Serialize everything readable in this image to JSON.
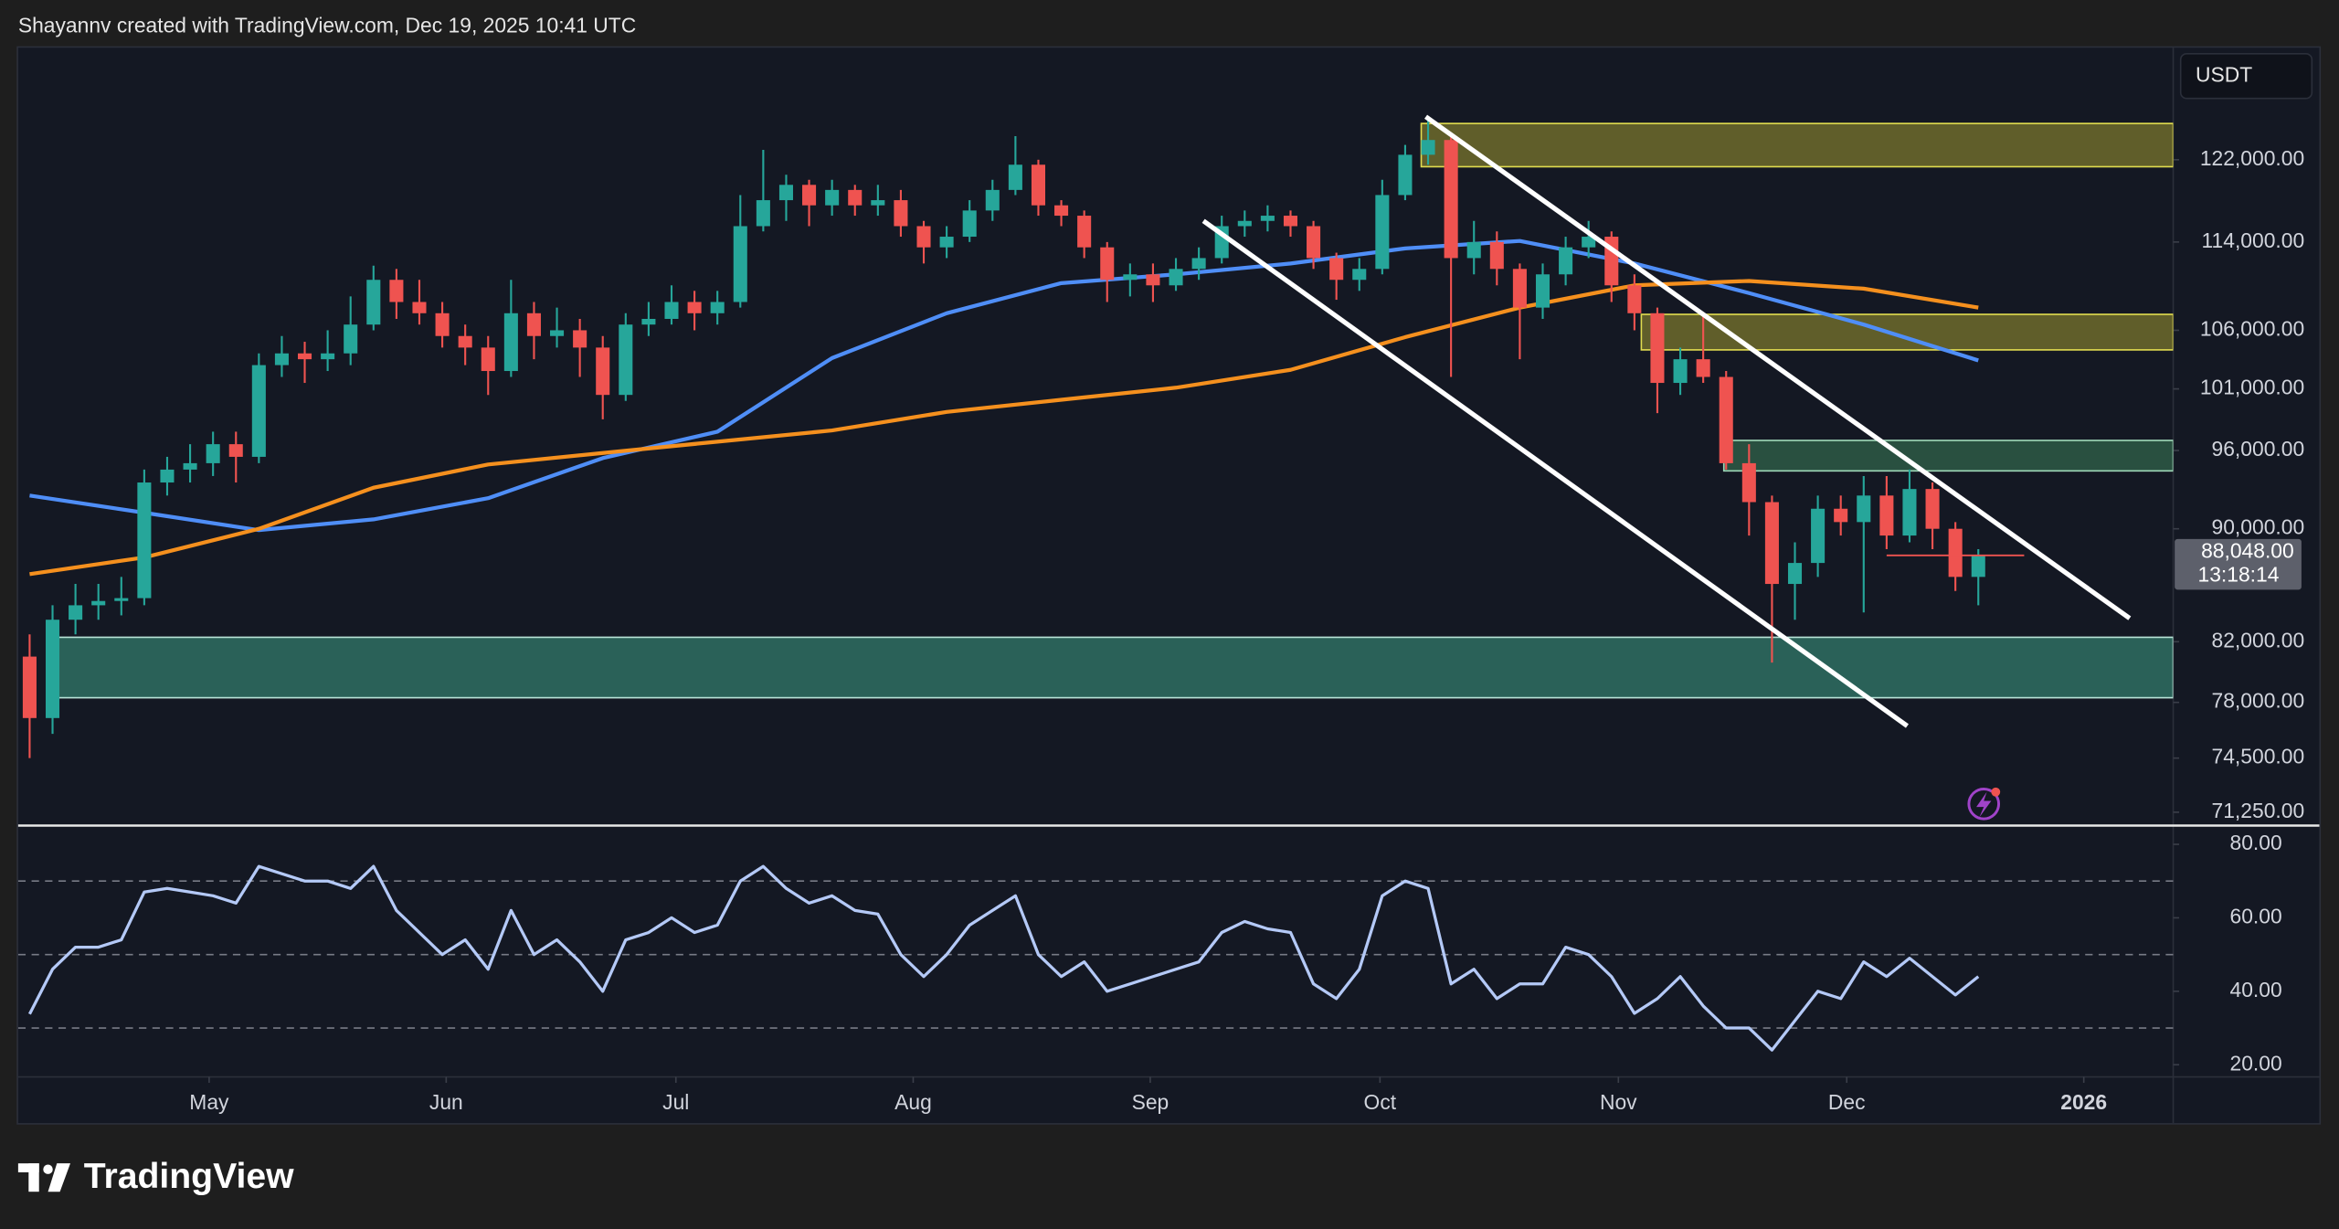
{
  "header": "Shayannv created with TradingView.com, Dec 19, 2025 10:41 UTC",
  "currency": "USDT",
  "brand": "TradingView",
  "chart_data": [
    {
      "type": "candlestick",
      "log_scale": true,
      "grid": false,
      "up_color": "#26a69a",
      "down_color": "#ef5350",
      "xlim": [
        -0.5,
        93.5
      ],
      "xticks": [
        {
          "value": 7.83,
          "label": "May"
        },
        {
          "value": 18.17,
          "label": "Jun"
        },
        {
          "value": 28.19,
          "label": "Jul"
        },
        {
          "value": 38.54,
          "label": "Aug"
        },
        {
          "value": 48.88,
          "label": "Sep"
        },
        {
          "value": 58.9,
          "label": "Oct"
        },
        {
          "value": 69.3,
          "label": "Nov"
        },
        {
          "value": 79.26,
          "label": "Dec"
        },
        {
          "value": 89.6,
          "label": "2026"
        }
      ],
      "ylim": [
        70600,
        133800
      ],
      "yticks": [
        {
          "value": 122000,
          "label": "122,000.00"
        },
        {
          "value": 114000,
          "label": "114,000.00"
        },
        {
          "value": 106000,
          "label": "106,000.00"
        },
        {
          "value": 101000,
          "label": "101,000.00"
        },
        {
          "value": 96000,
          "label": "96,000.00"
        },
        {
          "value": 90000,
          "label": "90,000.00"
        },
        {
          "value": 82000,
          "label": "82,000.00"
        },
        {
          "value": 78000,
          "label": "78,000.00"
        },
        {
          "value": 74500,
          "label": "74,500.00"
        },
        {
          "value": 71250,
          "label": "71,250.00"
        }
      ],
      "open": [
        81000,
        77000,
        83500,
        84500,
        84800,
        85000,
        93500,
        94500,
        95000,
        96500,
        95500,
        103000,
        104000,
        103500,
        104000,
        106500,
        110500,
        108500,
        107500,
        105500,
        104500,
        102500,
        107500,
        105500,
        106000,
        104500,
        100500,
        106500,
        107000,
        108500,
        107500,
        108500,
        115500,
        118000,
        119500,
        117500,
        119000,
        117500,
        118000,
        115500,
        113500,
        114500,
        117000,
        119000,
        121500,
        117500,
        116500,
        113500,
        110500,
        111000,
        110000,
        111500,
        112500,
        115500,
        116000,
        116500,
        115500,
        112500,
        110500,
        111500,
        118500,
        122500,
        124000,
        112500,
        114000,
        111500,
        108000,
        111000,
        113500,
        114500,
        110000,
        107500,
        101500,
        103500,
        102000,
        95000,
        92000,
        86000,
        87500,
        91500,
        90500,
        92500,
        89500,
        93000,
        90000,
        86500
      ],
      "high": [
        82500,
        84500,
        86000,
        86000,
        86500,
        94500,
        95500,
        96500,
        97500,
        97500,
        104000,
        105500,
        105000,
        106000,
        109000,
        111800,
        111500,
        110500,
        108500,
        106500,
        105500,
        110500,
        108500,
        108000,
        107000,
        105500,
        107500,
        108500,
        110000,
        109500,
        109500,
        118500,
        123000,
        120500,
        120000,
        120000,
        119500,
        119500,
        119000,
        116000,
        115500,
        118000,
        120000,
        124400,
        122000,
        118000,
        117000,
        114000,
        112000,
        112000,
        112500,
        113500,
        116500,
        117000,
        117500,
        117000,
        116000,
        113000,
        112500,
        120000,
        123500,
        126200,
        124500,
        116000,
        115000,
        112000,
        112000,
        114500,
        116000,
        115000,
        111000,
        108000,
        104500,
        107500,
        102500,
        96500,
        92500,
        89000,
        92500,
        92500,
        94000,
        94000,
        94500,
        93500,
        90500,
        88500
      ],
      "low": [
        74500,
        76000,
        82500,
        83500,
        83800,
        84500,
        92500,
        93500,
        94000,
        93500,
        95000,
        102000,
        101500,
        102500,
        103000,
        106000,
        107000,
        106500,
        104500,
        103000,
        100500,
        102000,
        103500,
        104500,
        102000,
        98500,
        100000,
        105500,
        106500,
        106000,
        106500,
        108000,
        115000,
        116000,
        115500,
        116500,
        116500,
        116500,
        114500,
        112000,
        112500,
        114000,
        116000,
        118500,
        116500,
        115500,
        112500,
        108500,
        109000,
        108500,
        109500,
        110500,
        112000,
        114500,
        115000,
        114500,
        111500,
        108700,
        109500,
        111000,
        118000,
        121500,
        102000,
        111000,
        110000,
        103500,
        107000,
        110000,
        112500,
        108500,
        106000,
        99000,
        100500,
        101500,
        94500,
        89500,
        80600,
        83500,
        86500,
        89500,
        84000,
        88500,
        89000,
        88500,
        85500,
        84500
      ],
      "close": [
        77000,
        83500,
        84500,
        84800,
        85000,
        93500,
        94500,
        95000,
        96500,
        95500,
        103000,
        104000,
        103500,
        104000,
        106500,
        110500,
        108500,
        107500,
        105500,
        104500,
        102500,
        107500,
        105500,
        106000,
        104500,
        100500,
        106500,
        107000,
        108500,
        107500,
        108500,
        115500,
        118000,
        119500,
        117500,
        119000,
        117500,
        118000,
        115500,
        113500,
        114500,
        117000,
        119000,
        121500,
        117500,
        116500,
        113500,
        110500,
        111000,
        110000,
        111500,
        112500,
        115500,
        116000,
        116500,
        115500,
        112500,
        110500,
        111500,
        118500,
        122500,
        124000,
        112500,
        114000,
        111500,
        108000,
        111000,
        113500,
        114500,
        110000,
        107500,
        101500,
        103500,
        102000,
        95000,
        92000,
        86000,
        87500,
        91500,
        90500,
        92500,
        89500,
        93000,
        90000,
        86500,
        88048
      ],
      "lines": [
        {
          "color": "#4f8ef7",
          "x": [
            0,
            5,
            10,
            15,
            20,
            25,
            30,
            35,
            40,
            45,
            50,
            55,
            60,
            65,
            70,
            75,
            80,
            85
          ],
          "values": [
            92500,
            91200,
            89900,
            90700,
            92300,
            95400,
            97500,
            103600,
            107500,
            110200,
            111000,
            112000,
            113400,
            114100,
            112000,
            109300,
            106500,
            103400
          ]
        },
        {
          "color": "#f5901e",
          "x": [
            0,
            5,
            10,
            15,
            20,
            25,
            30,
            35,
            40,
            45,
            50,
            55,
            60,
            65,
            70,
            75,
            80,
            85
          ],
          "values": [
            86700,
            87900,
            90000,
            93100,
            94900,
            95800,
            96700,
            97600,
            99100,
            100100,
            101100,
            102600,
            105400,
            108000,
            110000,
            110400,
            109700,
            108000
          ]
        }
      ],
      "zones": [
        {
          "from_x": 60.7,
          "top": 125700,
          "bottom": 121300,
          "color": "#6d6b2c",
          "border": "#e0db4f"
        },
        {
          "from_x": 70.3,
          "top": 107400,
          "bottom": 104300,
          "color": "#6d6b2c",
          "border": "#e0db4f"
        },
        {
          "from_x": 73.9,
          "top": 96800,
          "bottom": 94400,
          "color": "#2d5a45",
          "border": "#9fd8b8"
        },
        {
          "from_x": 0.9,
          "top": 82300,
          "bottom": 78300,
          "color": "#2e6e62",
          "border": "#b8e4d8"
        }
      ],
      "trendlines": [
        {
          "color": "#ffffff",
          "x": [
            60.9,
            91.6
          ],
          "values": [
            126400,
            83600
          ]
        },
        {
          "color": "#ffffff",
          "x": [
            51.2,
            81.9
          ],
          "values": [
            116000,
            76500
          ]
        }
      ],
      "last_price": {
        "value": 88048,
        "label": "88,048.00",
        "color": "#ef5350"
      },
      "countdown": "13:18:14"
    },
    {
      "type": "line",
      "color": "#b4c9f7",
      "ylim": [
        16.7,
        84.1
      ],
      "yticks": [
        {
          "value": 80,
          "label": "80.00"
        },
        {
          "value": 60,
          "label": "60.00"
        },
        {
          "value": 40,
          "label": "40.00"
        },
        {
          "value": 20,
          "label": "20.00"
        }
      ],
      "levels": [
        70,
        50,
        30
      ],
      "values": [
        33.8,
        46,
        52,
        52,
        54,
        67,
        68,
        67,
        66,
        64,
        74,
        72,
        70,
        70,
        68,
        74,
        62,
        56,
        50,
        54,
        46,
        62,
        50,
        54,
        48,
        40,
        54,
        56,
        60,
        56,
        58,
        70,
        74,
        68,
        64,
        66,
        62,
        61,
        50,
        44,
        50,
        58,
        62,
        66,
        50,
        44,
        48,
        40,
        42,
        44,
        46,
        48,
        56,
        59,
        57,
        56,
        42,
        38,
        46,
        66,
        70,
        68,
        42,
        46,
        38,
        42,
        42,
        52,
        50,
        44,
        34,
        38,
        44,
        36,
        30,
        30,
        24,
        32,
        40,
        38,
        48,
        44,
        49,
        44,
        39,
        44
      ]
    }
  ]
}
